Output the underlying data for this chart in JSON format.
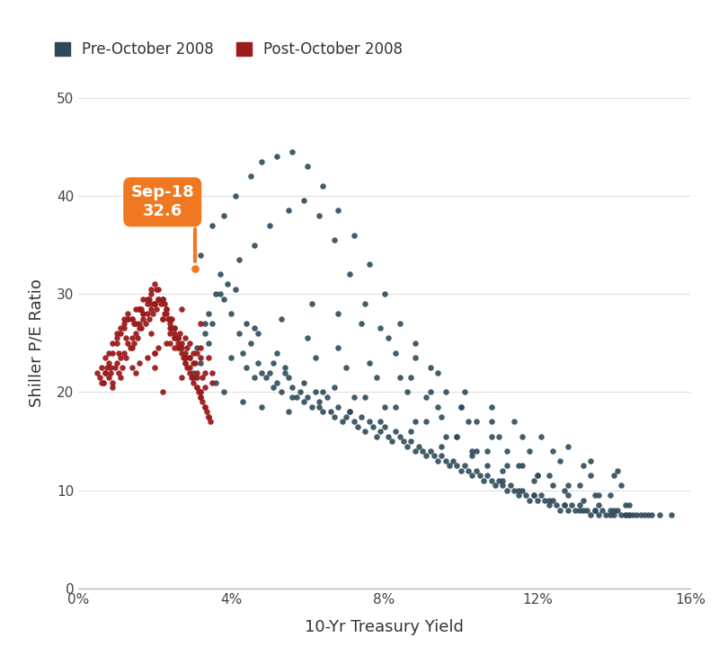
{
  "pre_2008_x": [
    3.0,
    3.1,
    3.2,
    3.3,
    3.4,
    3.5,
    3.6,
    3.7,
    3.8,
    3.9,
    4.0,
    4.1,
    4.2,
    4.3,
    4.4,
    4.5,
    4.6,
    4.7,
    4.8,
    4.9,
    5.0,
    5.1,
    5.2,
    5.3,
    5.4,
    5.5,
    5.6,
    5.7,
    5.8,
    5.9,
    6.0,
    6.1,
    6.2,
    6.3,
    6.4,
    6.5,
    6.6,
    6.7,
    6.8,
    6.9,
    7.0,
    7.1,
    7.2,
    7.3,
    7.4,
    7.5,
    7.6,
    7.7,
    7.8,
    7.9,
    8.0,
    8.1,
    8.2,
    8.3,
    8.4,
    8.5,
    8.6,
    8.7,
    8.8,
    8.9,
    9.0,
    9.1,
    9.2,
    9.3,
    9.4,
    9.5,
    9.6,
    9.7,
    9.8,
    9.9,
    10.0,
    10.1,
    10.2,
    10.3,
    10.4,
    10.5,
    10.6,
    10.7,
    10.8,
    10.9,
    11.0,
    11.1,
    11.2,
    11.3,
    11.4,
    11.5,
    11.6,
    11.7,
    11.8,
    11.9,
    12.0,
    12.1,
    12.2,
    12.3,
    12.4,
    12.5,
    12.6,
    12.7,
    12.8,
    12.9,
    13.0,
    13.1,
    13.2,
    13.3,
    13.4,
    13.5,
    13.6,
    13.7,
    13.8,
    13.9,
    14.0,
    14.1,
    14.2,
    14.3,
    14.4,
    14.5,
    14.6,
    14.7,
    14.8,
    14.9,
    15.0,
    15.2,
    15.5,
    3.2,
    3.5,
    3.8,
    4.1,
    4.5,
    4.8,
    5.2,
    5.6,
    6.0,
    6.4,
    6.8,
    7.2,
    7.6,
    8.0,
    8.4,
    8.8,
    9.2,
    9.6,
    10.0,
    10.4,
    10.8,
    11.2,
    11.6,
    12.0,
    12.4,
    12.8,
    13.2,
    13.6,
    14.0,
    14.4,
    3.3,
    3.7,
    4.2,
    4.6,
    5.0,
    5.5,
    5.9,
    6.3,
    6.7,
    7.1,
    7.5,
    7.9,
    8.3,
    8.7,
    9.1,
    9.5,
    9.9,
    10.3,
    10.7,
    11.1,
    11.5,
    11.9,
    12.3,
    12.7,
    13.1,
    13.5,
    13.9,
    14.3,
    3.4,
    4.0,
    4.7,
    5.3,
    6.1,
    6.8,
    7.4,
    8.1,
    8.8,
    9.4,
    10.1,
    10.8,
    11.4,
    12.1,
    12.8,
    13.4,
    14.1,
    3.6,
    4.4,
    5.2,
    6.0,
    6.8,
    7.6,
    8.4,
    9.2,
    10.0,
    10.8,
    11.6,
    12.4,
    13.2,
    14.0,
    3.8,
    4.6,
    5.4,
    6.2,
    7.0,
    7.8,
    8.6,
    9.4,
    10.2,
    11.0,
    11.8,
    12.6,
    13.4,
    14.2,
    4.3,
    5.1,
    5.9,
    6.7,
    7.5,
    8.3,
    9.1,
    9.9,
    10.7,
    11.5,
    12.3,
    13.1,
    13.9,
    4.8,
    5.6,
    6.4,
    7.2,
    8.0,
    8.8,
    9.6,
    10.4,
    11.2,
    12.0,
    12.8,
    13.6,
    14.4,
    5.5,
    6.3,
    7.1,
    7.9,
    8.7,
    9.5,
    10.3,
    11.1,
    11.9,
    12.7,
    13.5,
    14.3
  ],
  "pre_2008_y": [
    22.0,
    24.5,
    23.0,
    26.0,
    28.0,
    27.0,
    30.0,
    32.0,
    29.5,
    31.0,
    28.0,
    30.5,
    26.0,
    24.0,
    27.0,
    25.0,
    26.5,
    23.0,
    22.0,
    21.5,
    22.0,
    23.0,
    21.0,
    20.0,
    22.0,
    21.5,
    20.5,
    19.5,
    20.0,
    19.0,
    19.5,
    18.5,
    20.0,
    19.0,
    18.0,
    19.5,
    18.0,
    17.5,
    18.5,
    17.0,
    17.5,
    18.0,
    17.0,
    16.5,
    17.5,
    16.0,
    17.0,
    16.5,
    15.5,
    16.0,
    16.5,
    15.5,
    15.0,
    16.0,
    15.5,
    15.0,
    14.5,
    15.0,
    14.0,
    14.5,
    14.0,
    13.5,
    14.0,
    13.5,
    13.0,
    13.5,
    13.0,
    12.5,
    13.0,
    12.5,
    12.0,
    12.5,
    12.0,
    11.5,
    12.0,
    11.5,
    11.0,
    11.5,
    11.0,
    10.5,
    11.0,
    10.5,
    10.0,
    10.5,
    10.0,
    9.5,
    10.0,
    9.5,
    9.0,
    9.5,
    9.0,
    9.5,
    9.0,
    8.5,
    9.0,
    8.5,
    8.0,
    8.5,
    8.0,
    8.5,
    8.0,
    8.5,
    8.0,
    8.0,
    7.5,
    8.0,
    7.5,
    8.0,
    7.5,
    8.0,
    7.5,
    8.0,
    7.5,
    7.5,
    7.5,
    7.5,
    7.5,
    7.5,
    7.5,
    7.5,
    7.5,
    7.5,
    7.5,
    34.0,
    37.0,
    38.0,
    40.0,
    42.0,
    43.5,
    44.0,
    44.5,
    43.0,
    41.0,
    38.5,
    36.0,
    33.0,
    30.0,
    27.0,
    25.0,
    22.5,
    20.0,
    18.5,
    17.0,
    15.5,
    14.0,
    12.5,
    11.5,
    10.5,
    9.5,
    9.0,
    8.5,
    8.0,
    7.5,
    27.0,
    30.0,
    33.5,
    35.0,
    37.0,
    38.5,
    39.5,
    38.0,
    35.5,
    32.0,
    29.0,
    26.5,
    24.0,
    21.5,
    19.5,
    17.5,
    15.5,
    14.0,
    12.5,
    11.0,
    10.0,
    9.5,
    9.0,
    8.5,
    8.0,
    8.0,
    7.5,
    7.5,
    25.0,
    23.5,
    26.0,
    27.5,
    29.0,
    28.0,
    27.0,
    25.5,
    23.5,
    22.0,
    20.0,
    18.5,
    17.0,
    15.5,
    14.5,
    13.0,
    12.0,
    21.0,
    22.5,
    24.0,
    25.5,
    24.5,
    23.0,
    21.5,
    20.0,
    18.5,
    17.0,
    15.5,
    14.0,
    12.5,
    11.5,
    20.0,
    21.5,
    22.5,
    23.5,
    22.5,
    21.5,
    20.0,
    18.5,
    17.0,
    15.5,
    14.0,
    13.0,
    11.5,
    10.5,
    19.0,
    20.5,
    21.0,
    20.5,
    19.5,
    18.5,
    17.0,
    15.5,
    14.0,
    12.5,
    11.5,
    10.5,
    9.5,
    18.5,
    19.5,
    20.0,
    19.5,
    18.5,
    17.0,
    15.5,
    14.0,
    12.5,
    11.5,
    10.5,
    9.5,
    8.5,
    18.0,
    18.5,
    18.0,
    17.0,
    16.0,
    14.5,
    13.5,
    12.0,
    11.0,
    10.0,
    9.5,
    8.5
  ],
  "post_2008_x": [
    0.5,
    0.55,
    0.6,
    0.65,
    0.7,
    0.75,
    0.8,
    0.85,
    0.9,
    0.95,
    1.0,
    1.05,
    1.1,
    1.15,
    1.2,
    1.25,
    1.3,
    1.35,
    1.4,
    1.45,
    1.5,
    1.55,
    1.6,
    1.65,
    1.7,
    1.75,
    1.8,
    1.85,
    1.9,
    1.95,
    2.0,
    2.05,
    2.1,
    2.15,
    2.2,
    2.25,
    2.3,
    2.35,
    2.4,
    2.45,
    2.5,
    2.55,
    2.6,
    2.65,
    2.7,
    2.75,
    2.8,
    2.85,
    2.9,
    2.95,
    3.0,
    3.05,
    3.1,
    3.15,
    3.2,
    3.25,
    3.3,
    3.35,
    3.4,
    3.45,
    0.6,
    0.7,
    0.8,
    0.9,
    1.0,
    1.1,
    1.2,
    1.3,
    1.4,
    1.5,
    1.6,
    1.7,
    1.8,
    1.9,
    2.0,
    2.1,
    2.2,
    2.3,
    2.4,
    2.5,
    2.6,
    2.7,
    2.8,
    2.9,
    3.0,
    3.1,
    3.2,
    3.3,
    3.4,
    0.7,
    0.9,
    1.1,
    1.3,
    1.5,
    1.7,
    1.9,
    2.1,
    2.3,
    2.5,
    2.7,
    2.9,
    3.1,
    3.3,
    0.8,
    1.0,
    1.2,
    1.4,
    1.6,
    1.8,
    2.0,
    2.2,
    2.4,
    2.6,
    2.8,
    3.0,
    3.2,
    1.0,
    1.3,
    1.6,
    1.9,
    2.2,
    2.5,
    2.8,
    3.1,
    1.2,
    1.6,
    2.0,
    2.4,
    2.8,
    3.2,
    1.5,
    2.0,
    2.5,
    3.0,
    3.5,
    2.0,
    2.5,
    3.0,
    3.5,
    1.8,
    2.3,
    2.8,
    3.3,
    2.2,
    2.7,
    3.2,
    1.4,
    1.9,
    2.4,
    2.9,
    1.1,
    1.6,
    2.1,
    2.6,
    3.1,
    0.9,
    1.4,
    2.0,
    2.6,
    3.2,
    2.4,
    2.9,
    3.4,
    1.7,
    2.2,
    2.7,
    3.2,
    0.65,
    0.85,
    1.05,
    1.25,
    1.45,
    1.65,
    1.85,
    2.05,
    2.25,
    2.45,
    2.65,
    2.85,
    3.05,
    3.25
  ],
  "post_2008_y": [
    22.0,
    21.5,
    22.5,
    21.0,
    22.0,
    22.5,
    21.5,
    22.0,
    21.0,
    22.5,
    23.0,
    22.0,
    23.5,
    22.5,
    24.0,
    23.5,
    25.0,
    24.5,
    25.5,
    25.0,
    26.0,
    25.5,
    27.0,
    26.5,
    27.5,
    27.0,
    28.0,
    27.5,
    28.5,
    28.0,
    29.0,
    28.5,
    29.5,
    29.0,
    29.5,
    28.0,
    28.5,
    27.5,
    27.0,
    26.5,
    26.0,
    25.5,
    25.0,
    24.5,
    24.0,
    23.5,
    23.0,
    22.5,
    22.0,
    21.5,
    21.0,
    32.6,
    20.5,
    20.0,
    19.5,
    19.0,
    18.5,
    18.0,
    17.5,
    17.0,
    21.0,
    22.0,
    23.0,
    24.0,
    25.0,
    26.0,
    27.0,
    28.0,
    27.5,
    27.0,
    26.5,
    28.0,
    29.0,
    30.0,
    31.0,
    30.5,
    29.5,
    28.5,
    27.5,
    26.5,
    25.5,
    24.5,
    23.5,
    22.5,
    21.5,
    20.5,
    19.5,
    18.5,
    17.5,
    23.5,
    25.0,
    26.5,
    27.5,
    28.5,
    29.5,
    30.5,
    29.5,
    28.0,
    26.5,
    25.0,
    23.5,
    22.0,
    20.5,
    24.0,
    25.5,
    26.5,
    27.5,
    28.5,
    29.5,
    29.0,
    27.5,
    26.0,
    24.5,
    23.0,
    21.5,
    20.0,
    26.0,
    27.5,
    28.5,
    29.0,
    27.5,
    25.5,
    23.5,
    21.5,
    27.5,
    28.5,
    29.0,
    27.5,
    25.5,
    23.5,
    22.0,
    24.0,
    25.5,
    24.0,
    22.0,
    22.5,
    24.5,
    23.0,
    21.0,
    23.5,
    25.0,
    24.0,
    22.0,
    20.0,
    21.5,
    20.0,
    24.5,
    26.0,
    25.0,
    23.5,
    21.5,
    23.0,
    24.5,
    25.5,
    24.0,
    20.5,
    22.5,
    24.0,
    25.5,
    24.5,
    26.5,
    25.0,
    23.5,
    28.0,
    29.5,
    28.5,
    27.0,
    21.0,
    22.5,
    24.0,
    25.5,
    27.0,
    28.5,
    29.5,
    30.5,
    29.0,
    27.5,
    26.0,
    24.5,
    23.0,
    21.5
  ],
  "sep18_x": 3.05,
  "sep18_y": 32.6,
  "pre_color": "#2e4a5a",
  "post_color": "#9b1c1c",
  "sep18_color": "#f07820",
  "ann_box_color": "#f07820",
  "ann_text_color": "white",
  "ann_label": "Sep-18\n32.6",
  "ann_fontsize": 13,
  "dot_size": 22,
  "xlim": [
    0,
    16
  ],
  "ylim": [
    0,
    50
  ],
  "xticks": [
    0,
    4,
    8,
    12,
    16
  ],
  "xticklabels": [
    "0%",
    "4%",
    "8%",
    "12%",
    "16%"
  ],
  "yticks": [
    0,
    10,
    20,
    30,
    40,
    50
  ],
  "xlabel": "10-Yr Treasury Yield",
  "ylabel": "Shiller P/E Ratio",
  "pre_legend": "Pre-October 2008",
  "post_legend": "Post-October 2008",
  "fig_w": 8.0,
  "fig_h": 7.29,
  "dpi": 100
}
